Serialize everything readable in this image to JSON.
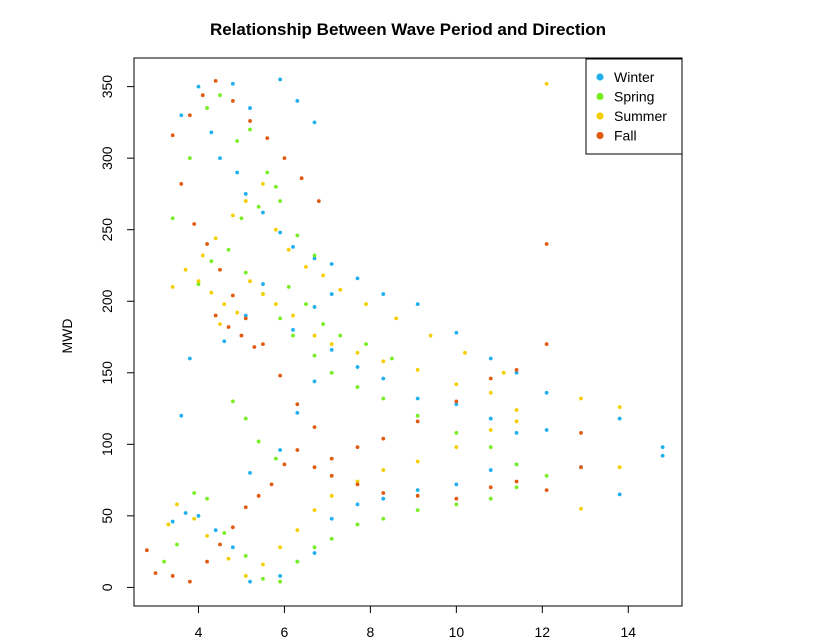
{
  "chart_data": {
    "type": "scatter",
    "title": "Relationship Between Wave Period and Direction",
    "xlabel": "",
    "ylabel": "MWD",
    "xlim": [
      2.5,
      15.25
    ],
    "ylim": [
      -13,
      370
    ],
    "x_ticks": [
      4,
      6,
      8,
      10,
      12,
      14
    ],
    "y_ticks": [
      0,
      50,
      100,
      150,
      200,
      250,
      300,
      350
    ],
    "legend": {
      "position": "top-right",
      "entries": [
        {
          "label": "Winter",
          "color": "#1fb0f0"
        },
        {
          "label": "Spring",
          "color": "#77ee22"
        },
        {
          "label": "Summer",
          "color": "#f5cf00"
        },
        {
          "label": "Fall",
          "color": "#e05a10"
        }
      ]
    },
    "series": [
      {
        "name": "Winter",
        "color": "#1fb0f0",
        "points": [
          [
            3.6,
            330
          ],
          [
            4.0,
            350
          ],
          [
            4.3,
            318
          ],
          [
            4.8,
            352
          ],
          [
            5.2,
            335
          ],
          [
            5.9,
            355
          ],
          [
            6.3,
            340
          ],
          [
            6.7,
            325
          ],
          [
            4.5,
            300
          ],
          [
            4.9,
            290
          ],
          [
            5.1,
            275
          ],
          [
            5.5,
            262
          ],
          [
            5.9,
            248
          ],
          [
            6.2,
            238
          ],
          [
            6.7,
            230
          ],
          [
            7.1,
            226
          ],
          [
            7.7,
            216
          ],
          [
            8.3,
            205
          ],
          [
            9.1,
            198
          ],
          [
            10.0,
            178
          ],
          [
            10.8,
            160
          ],
          [
            11.4,
            150
          ],
          [
            12.1,
            136
          ],
          [
            13.8,
            118
          ],
          [
            14.8,
            98
          ],
          [
            14.8,
            92
          ],
          [
            13.8,
            65
          ],
          [
            12.9,
            84
          ],
          [
            11.4,
            86
          ],
          [
            10.8,
            82
          ],
          [
            10.0,
            72
          ],
          [
            9.1,
            68
          ],
          [
            8.3,
            62
          ],
          [
            7.7,
            58
          ],
          [
            7.1,
            48
          ],
          [
            6.7,
            24
          ],
          [
            6.3,
            18
          ],
          [
            5.9,
            8
          ],
          [
            5.2,
            4
          ],
          [
            4.8,
            28
          ],
          [
            4.4,
            40
          ],
          [
            4.0,
            50
          ],
          [
            3.7,
            52
          ],
          [
            3.4,
            46
          ],
          [
            5.2,
            80
          ],
          [
            5.9,
            96
          ],
          [
            6.3,
            122
          ],
          [
            6.7,
            144
          ],
          [
            7.1,
            166
          ],
          [
            7.7,
            154
          ],
          [
            8.3,
            146
          ],
          [
            9.1,
            132
          ],
          [
            10.0,
            128
          ],
          [
            10.8,
            118
          ],
          [
            11.4,
            108
          ],
          [
            12.1,
            110
          ],
          [
            6.2,
            180
          ],
          [
            6.7,
            196
          ],
          [
            7.1,
            205
          ],
          [
            5.5,
            212
          ],
          [
            5.1,
            190
          ],
          [
            4.6,
            172
          ],
          [
            3.8,
            160
          ],
          [
            3.6,
            120
          ]
        ]
      },
      {
        "name": "Spring",
        "color": "#77ee22",
        "points": [
          [
            3.4,
            258
          ],
          [
            3.8,
            300
          ],
          [
            4.2,
            335
          ],
          [
            4.5,
            344
          ],
          [
            4.9,
            312
          ],
          [
            5.2,
            320
          ],
          [
            5.6,
            290
          ],
          [
            5.9,
            270
          ],
          [
            6.3,
            246
          ],
          [
            6.7,
            232
          ],
          [
            5.1,
            220
          ],
          [
            5.5,
            205
          ],
          [
            5.9,
            188
          ],
          [
            6.2,
            176
          ],
          [
            6.7,
            162
          ],
          [
            7.1,
            150
          ],
          [
            7.7,
            140
          ],
          [
            8.3,
            132
          ],
          [
            9.1,
            120
          ],
          [
            10.0,
            108
          ],
          [
            10.8,
            98
          ],
          [
            11.4,
            86
          ],
          [
            12.1,
            78
          ],
          [
            11.4,
            70
          ],
          [
            10.8,
            62
          ],
          [
            10.0,
            58
          ],
          [
            9.1,
            54
          ],
          [
            8.3,
            48
          ],
          [
            7.7,
            44
          ],
          [
            7.1,
            34
          ],
          [
            6.7,
            28
          ],
          [
            6.3,
            18
          ],
          [
            5.9,
            4
          ],
          [
            5.5,
            6
          ],
          [
            5.1,
            22
          ],
          [
            4.6,
            38
          ],
          [
            4.2,
            62
          ],
          [
            3.9,
            66
          ],
          [
            3.5,
            30
          ],
          [
            3.2,
            18
          ],
          [
            4.0,
            212
          ],
          [
            4.3,
            228
          ],
          [
            4.7,
            236
          ],
          [
            5.0,
            258
          ],
          [
            5.4,
            266
          ],
          [
            5.8,
            280
          ],
          [
            6.1,
            210
          ],
          [
            6.5,
            198
          ],
          [
            6.9,
            184
          ],
          [
            7.3,
            176
          ],
          [
            7.9,
            170
          ],
          [
            8.5,
            160
          ],
          [
            4.8,
            130
          ],
          [
            5.1,
            118
          ],
          [
            5.4,
            102
          ],
          [
            5.8,
            90
          ]
        ]
      },
      {
        "name": "Summer",
        "color": "#f5cf00",
        "points": [
          [
            3.4,
            210
          ],
          [
            3.7,
            222
          ],
          [
            4.0,
            214
          ],
          [
            4.3,
            206
          ],
          [
            4.6,
            198
          ],
          [
            4.9,
            192
          ],
          [
            5.2,
            214
          ],
          [
            5.5,
            205
          ],
          [
            5.8,
            198
          ],
          [
            6.2,
            190
          ],
          [
            6.7,
            176
          ],
          [
            7.1,
            170
          ],
          [
            7.7,
            164
          ],
          [
            8.3,
            158
          ],
          [
            9.1,
            152
          ],
          [
            10.0,
            142
          ],
          [
            10.8,
            136
          ],
          [
            11.4,
            124
          ],
          [
            12.9,
            132
          ],
          [
            13.8,
            126
          ],
          [
            13.8,
            84
          ],
          [
            12.9,
            55
          ],
          [
            12.1,
            352
          ],
          [
            11.4,
            116
          ],
          [
            10.8,
            110
          ],
          [
            10.0,
            98
          ],
          [
            9.1,
            88
          ],
          [
            8.3,
            82
          ],
          [
            7.7,
            74
          ],
          [
            7.1,
            64
          ],
          [
            6.7,
            54
          ],
          [
            6.3,
            40
          ],
          [
            5.9,
            28
          ],
          [
            5.5,
            16
          ],
          [
            5.1,
            8
          ],
          [
            4.7,
            20
          ],
          [
            4.2,
            36
          ],
          [
            3.9,
            48
          ],
          [
            3.5,
            58
          ],
          [
            3.3,
            44
          ],
          [
            4.1,
            232
          ],
          [
            4.4,
            244
          ],
          [
            4.8,
            260
          ],
          [
            5.1,
            270
          ],
          [
            5.5,
            282
          ],
          [
            5.8,
            250
          ],
          [
            6.1,
            236
          ],
          [
            6.5,
            224
          ],
          [
            6.9,
            218
          ],
          [
            7.3,
            208
          ],
          [
            7.9,
            198
          ],
          [
            8.6,
            188
          ],
          [
            9.4,
            176
          ],
          [
            10.2,
            164
          ],
          [
            11.1,
            150
          ],
          [
            4.5,
            184
          ]
        ]
      },
      {
        "name": "Fall",
        "color": "#e05a10",
        "points": [
          [
            2.8,
            26
          ],
          [
            3.0,
            10
          ],
          [
            3.4,
            8
          ],
          [
            3.8,
            4
          ],
          [
            4.2,
            18
          ],
          [
            4.5,
            30
          ],
          [
            4.8,
            42
          ],
          [
            5.1,
            56
          ],
          [
            5.4,
            64
          ],
          [
            5.7,
            72
          ],
          [
            6.0,
            86
          ],
          [
            6.3,
            96
          ],
          [
            6.7,
            84
          ],
          [
            7.1,
            78
          ],
          [
            7.7,
            72
          ],
          [
            8.3,
            66
          ],
          [
            9.1,
            64
          ],
          [
            10.0,
            62
          ],
          [
            10.8,
            70
          ],
          [
            11.4,
            74
          ],
          [
            12.1,
            68
          ],
          [
            12.9,
            84
          ],
          [
            12.9,
            108
          ],
          [
            12.1,
            240
          ],
          [
            12.1,
            170
          ],
          [
            11.4,
            152
          ],
          [
            10.8,
            146
          ],
          [
            10.0,
            130
          ],
          [
            9.1,
            116
          ],
          [
            8.3,
            104
          ],
          [
            7.7,
            98
          ],
          [
            7.1,
            90
          ],
          [
            6.7,
            112
          ],
          [
            6.3,
            128
          ],
          [
            5.9,
            148
          ],
          [
            5.5,
            170
          ],
          [
            5.1,
            188
          ],
          [
            4.8,
            204
          ],
          [
            4.5,
            222
          ],
          [
            4.2,
            240
          ],
          [
            3.9,
            254
          ],
          [
            3.6,
            282
          ],
          [
            3.4,
            316
          ],
          [
            3.8,
            330
          ],
          [
            4.1,
            344
          ],
          [
            4.4,
            354
          ],
          [
            4.8,
            340
          ],
          [
            5.2,
            326
          ],
          [
            5.6,
            314
          ],
          [
            6.0,
            300
          ],
          [
            6.4,
            286
          ],
          [
            6.8,
            270
          ],
          [
            4.4,
            190
          ],
          [
            4.7,
            182
          ],
          [
            5.0,
            176
          ],
          [
            5.3,
            168
          ]
        ]
      }
    ]
  }
}
